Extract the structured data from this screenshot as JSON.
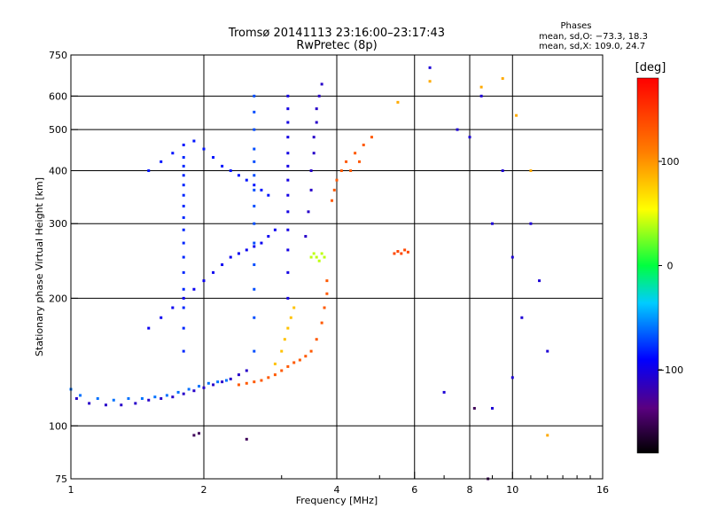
{
  "chart_data": {
    "type": "scatter",
    "title": "Tromsø 20141113 23:16:00–23:17:43",
    "subtitle": "RwPretec (8p)",
    "phases_block": {
      "heading": "Phases",
      "line_o": "mean, sd,O: −73.3, 18.3",
      "line_x": "mean, sd,X: 109.0, 24.7"
    },
    "xlabel": "Frequency [MHz]",
    "ylabel": "Stationary phase Virtual Height [km]",
    "x_scale": "log",
    "y_scale": "log",
    "xlim": [
      1,
      16
    ],
    "ylim": [
      75,
      750
    ],
    "x_ticks": [
      {
        "value": 1,
        "label": "1"
      },
      {
        "value": 2,
        "label": "2"
      },
      {
        "value": 4,
        "label": "4"
      },
      {
        "value": 6,
        "label": "6"
      },
      {
        "value": 8,
        "label": "8"
      },
      {
        "value": 10,
        "label": "10"
      },
      {
        "value": 16,
        "label": "16"
      }
    ],
    "y_ticks": [
      {
        "value": 75,
        "label": "75"
      },
      {
        "value": 100,
        "label": "100"
      },
      {
        "value": 200,
        "label": "200"
      },
      {
        "value": 300,
        "label": "300"
      },
      {
        "value": 400,
        "label": "400"
      },
      {
        "value": 500,
        "label": "500"
      },
      {
        "value": 600,
        "label": "600"
      },
      {
        "value": 750,
        "label": "750"
      }
    ],
    "x_grid": [
      2,
      4,
      6,
      8,
      10
    ],
    "y_grid": [
      100,
      200,
      300,
      400,
      500,
      600
    ],
    "x_minor_ticks": [
      3,
      5,
      7,
      9,
      11,
      12,
      13,
      14,
      15
    ],
    "grid": true,
    "colorbar": {
      "label": "[deg]",
      "range": [
        -180,
        180
      ],
      "ticks": [
        {
          "value": 100,
          "label": "100"
        },
        {
          "value": 0,
          "label": "0"
        },
        {
          "value": -100,
          "label": "−100"
        }
      ]
    },
    "point_groups": [
      {
        "name": "O-trace-upper-curve",
        "phase_deg": -110,
        "points": [
          [
            1.03,
            116
          ],
          [
            1.1,
            113
          ],
          [
            1.2,
            112
          ],
          [
            1.3,
            112
          ],
          [
            1.4,
            113
          ],
          [
            1.5,
            115
          ],
          [
            1.6,
            116
          ],
          [
            1.7,
            117
          ],
          [
            1.8,
            119
          ],
          [
            1.9,
            121
          ],
          [
            2.0,
            123
          ],
          [
            2.1,
            125
          ],
          [
            2.2,
            127
          ],
          [
            2.3,
            129
          ],
          [
            2.4,
            132
          ],
          [
            2.5,
            135
          ]
        ]
      },
      {
        "name": "O-trace-lower-edge",
        "phase_deg": -60,
        "points": [
          [
            1.0,
            122
          ],
          [
            1.05,
            118
          ],
          [
            1.15,
            116
          ],
          [
            1.25,
            115
          ],
          [
            1.35,
            116
          ],
          [
            1.45,
            116
          ],
          [
            1.55,
            117
          ],
          [
            1.65,
            118
          ],
          [
            1.75,
            120
          ],
          [
            1.85,
            122
          ],
          [
            1.95,
            124
          ],
          [
            2.05,
            126
          ],
          [
            2.15,
            127
          ],
          [
            2.25,
            128
          ]
        ]
      },
      {
        "name": "O-spread-mid",
        "phase_deg": -95,
        "points": [
          [
            1.5,
            170
          ],
          [
            1.6,
            180
          ],
          [
            1.7,
            190
          ],
          [
            1.8,
            200
          ],
          [
            1.9,
            210
          ],
          [
            2.0,
            220
          ],
          [
            2.1,
            230
          ],
          [
            2.2,
            240
          ],
          [
            2.3,
            250
          ],
          [
            2.4,
            255
          ],
          [
            2.5,
            260
          ],
          [
            2.6,
            265
          ],
          [
            2.7,
            270
          ],
          [
            2.8,
            280
          ],
          [
            2.9,
            290
          ]
        ]
      },
      {
        "name": "O-spread-high",
        "phase_deg": -85,
        "points": [
          [
            1.5,
            400
          ],
          [
            1.6,
            420
          ],
          [
            1.7,
            440
          ],
          [
            1.8,
            460
          ],
          [
            1.9,
            470
          ],
          [
            2.0,
            450
          ],
          [
            2.1,
            430
          ],
          [
            2.2,
            410
          ],
          [
            2.3,
            400
          ],
          [
            2.4,
            390
          ],
          [
            2.5,
            380
          ],
          [
            2.6,
            370
          ],
          [
            2.7,
            360
          ],
          [
            2.8,
            350
          ]
        ]
      },
      {
        "name": "O-column-1.8",
        "phase_deg": -80,
        "points": [
          [
            1.8,
            150
          ],
          [
            1.8,
            170
          ],
          [
            1.8,
            190
          ],
          [
            1.8,
            210
          ],
          [
            1.8,
            230
          ],
          [
            1.8,
            250
          ],
          [
            1.8,
            270
          ],
          [
            1.8,
            290
          ],
          [
            1.8,
            310
          ],
          [
            1.8,
            330
          ],
          [
            1.8,
            350
          ],
          [
            1.8,
            370
          ],
          [
            1.8,
            390
          ],
          [
            1.8,
            410
          ],
          [
            1.8,
            430
          ]
        ]
      },
      {
        "name": "O-column-2.6",
        "phase_deg": -70,
        "points": [
          [
            2.6,
            150
          ],
          [
            2.6,
            180
          ],
          [
            2.6,
            210
          ],
          [
            2.6,
            240
          ],
          [
            2.6,
            270
          ],
          [
            2.6,
            300
          ],
          [
            2.6,
            330
          ],
          [
            2.6,
            360
          ],
          [
            2.6,
            390
          ],
          [
            2.6,
            420
          ],
          [
            2.6,
            450
          ],
          [
            2.6,
            500
          ],
          [
            2.6,
            550
          ],
          [
            2.6,
            600
          ]
        ]
      },
      {
        "name": "O-column-3.1",
        "phase_deg": -100,
        "points": [
          [
            3.1,
            200
          ],
          [
            3.1,
            230
          ],
          [
            3.1,
            260
          ],
          [
            3.1,
            290
          ],
          [
            3.1,
            320
          ],
          [
            3.1,
            350
          ],
          [
            3.1,
            380
          ],
          [
            3.1,
            410
          ],
          [
            3.1,
            440
          ],
          [
            3.1,
            480
          ],
          [
            3.1,
            520
          ],
          [
            3.1,
            560
          ],
          [
            3.1,
            600
          ]
        ]
      },
      {
        "name": "O-column-3.5",
        "phase_deg": -110,
        "points": [
          [
            3.4,
            280
          ],
          [
            3.45,
            320
          ],
          [
            3.5,
            360
          ],
          [
            3.5,
            400
          ],
          [
            3.55,
            440
          ],
          [
            3.55,
            480
          ],
          [
            3.6,
            520
          ],
          [
            3.6,
            560
          ],
          [
            3.65,
            600
          ],
          [
            3.7,
            640
          ]
        ]
      },
      {
        "name": "X-trace-orange",
        "phase_deg": 130,
        "points": [
          [
            2.4,
            125
          ],
          [
            2.5,
            126
          ],
          [
            2.6,
            127
          ],
          [
            2.7,
            128
          ],
          [
            2.8,
            130
          ],
          [
            2.9,
            132
          ],
          [
            3.0,
            135
          ],
          [
            3.1,
            138
          ],
          [
            3.2,
            141
          ],
          [
            3.3,
            143
          ],
          [
            3.4,
            146
          ],
          [
            3.5,
            150
          ],
          [
            3.6,
            160
          ],
          [
            3.7,
            175
          ],
          [
            3.75,
            190
          ],
          [
            3.8,
            205
          ],
          [
            3.8,
            220
          ]
        ]
      },
      {
        "name": "X-trace-yellow",
        "phase_deg": 80,
        "points": [
          [
            2.9,
            140
          ],
          [
            3.0,
            150
          ],
          [
            3.05,
            160
          ],
          [
            3.1,
            170
          ],
          [
            3.15,
            180
          ],
          [
            3.2,
            190
          ]
        ]
      },
      {
        "name": "X-high-orange",
        "phase_deg": 130,
        "points": [
          [
            3.9,
            340
          ],
          [
            3.95,
            360
          ],
          [
            4.0,
            380
          ],
          [
            4.1,
            400
          ],
          [
            4.2,
            420
          ],
          [
            4.4,
            440
          ],
          [
            4.6,
            460
          ],
          [
            4.8,
            480
          ],
          [
            4.3,
            400
          ],
          [
            4.5,
            420
          ]
        ]
      },
      {
        "name": "X-green-cluster",
        "phase_deg": 40,
        "points": [
          [
            3.5,
            250
          ],
          [
            3.55,
            255
          ],
          [
            3.6,
            250
          ],
          [
            3.65,
            245
          ],
          [
            3.7,
            255
          ],
          [
            3.75,
            250
          ]
        ]
      },
      {
        "name": "X-orange-cluster",
        "phase_deg": 140,
        "points": [
          [
            5.4,
            255
          ],
          [
            5.5,
            258
          ],
          [
            5.6,
            255
          ],
          [
            5.7,
            260
          ],
          [
            5.8,
            257
          ]
        ]
      },
      {
        "name": "sparse-high-freq",
        "phase_deg": -105,
        "points": [
          [
            6.5,
            700
          ],
          [
            7.5,
            500
          ],
          [
            8.0,
            480
          ],
          [
            8.5,
            600
          ],
          [
            9.0,
            300
          ],
          [
            9.5,
            400
          ],
          [
            10.0,
            250
          ],
          [
            10.5,
            180
          ],
          [
            11.0,
            300
          ],
          [
            12.0,
            150
          ],
          [
            7.0,
            120
          ],
          [
            9.0,
            110
          ],
          [
            10.0,
            130
          ],
          [
            11.5,
            220
          ]
        ]
      },
      {
        "name": "sparse-yellow",
        "phase_deg": 90,
        "points": [
          [
            6.5,
            650
          ],
          [
            8.5,
            630
          ],
          [
            9.5,
            660
          ],
          [
            10.2,
            540
          ],
          [
            11.0,
            400
          ],
          [
            12.0,
            95
          ],
          [
            5.5,
            580
          ]
        ]
      },
      {
        "name": "low-dots",
        "phase_deg": -150,
        "points": [
          [
            1.9,
            95
          ],
          [
            1.95,
            96
          ],
          [
            2.5,
            93
          ],
          [
            8.2,
            110
          ],
          [
            8.8,
            75
          ]
        ]
      }
    ]
  }
}
